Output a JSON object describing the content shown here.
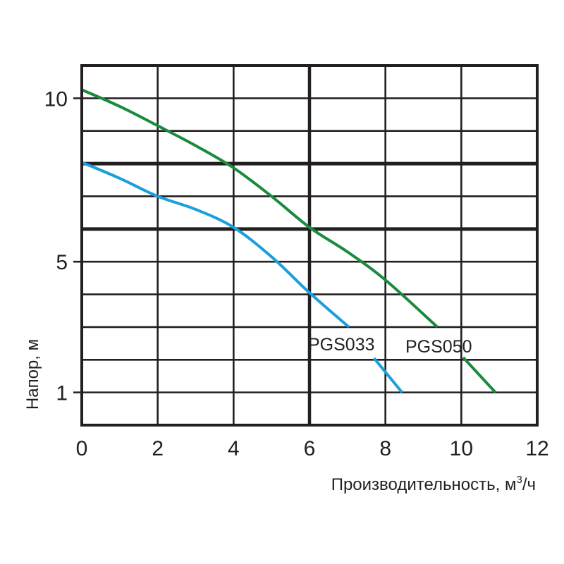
{
  "chart_data": {
    "type": "line",
    "title": "",
    "xlabel": "Производительность, м³/ч",
    "xlabel_main": "Производительность, м",
    "xlabel_sup": "3",
    "xlabel_tail": "/ч",
    "ylabel": "Напор, м",
    "xlim": [
      0,
      12
    ],
    "ylim": [
      0,
      11
    ],
    "x_ticks": [
      0,
      2,
      4,
      6,
      8,
      10,
      12
    ],
    "x_tick_labels": [
      "0",
      "2",
      "4",
      "6",
      "8",
      "10",
      "12"
    ],
    "y_ticks": [
      1,
      5,
      10
    ],
    "y_tick_labels": [
      "1",
      "5",
      "10"
    ],
    "grid": true,
    "y_gridlines": [
      1,
      2,
      3,
      4,
      5,
      6,
      7,
      8,
      9,
      10,
      11
    ],
    "thick_y_gridlines": [
      6,
      8
    ],
    "x_gridlines": [
      0,
      2,
      4,
      6,
      8,
      10,
      12
    ],
    "thick_x_gridlines": [
      6
    ],
    "legend_position": "inline labels near curve ends",
    "series": [
      {
        "name": "PGS033",
        "color": "#1a9fdc",
        "segments": [
          {
            "x": [
              0,
              1,
              2,
              3,
              4,
              5,
              6,
              7.04
            ],
            "y": [
              8.04,
              7.55,
              7.0,
              6.6,
              6.05,
              5.15,
              4.05,
              3.0
            ]
          },
          {
            "x": [
              7.7,
              8.44
            ],
            "y": [
              2.05,
              1.0
            ]
          }
        ],
        "label_x": 7.6,
        "label_y": 2.55
      },
      {
        "name": "PGS050",
        "color": "#1a8a3c",
        "segments": [
          {
            "x": [
              0,
              1,
              2,
              3,
              4,
              5,
              6,
              7,
              8,
              9.37
            ],
            "y": [
              10.26,
              9.75,
              9.16,
              8.55,
              7.87,
              7.0,
              6.05,
              5.3,
              4.44,
              3.0
            ]
          },
          {
            "x": [
              10.05,
              10.9
            ],
            "y": [
              2.07,
              1.0
            ]
          }
        ],
        "label_x": 10.6,
        "label_y": 2.55
      }
    ]
  },
  "colors": {
    "grid": "#231f20",
    "text": "#231f20",
    "background": "#ffffff"
  }
}
